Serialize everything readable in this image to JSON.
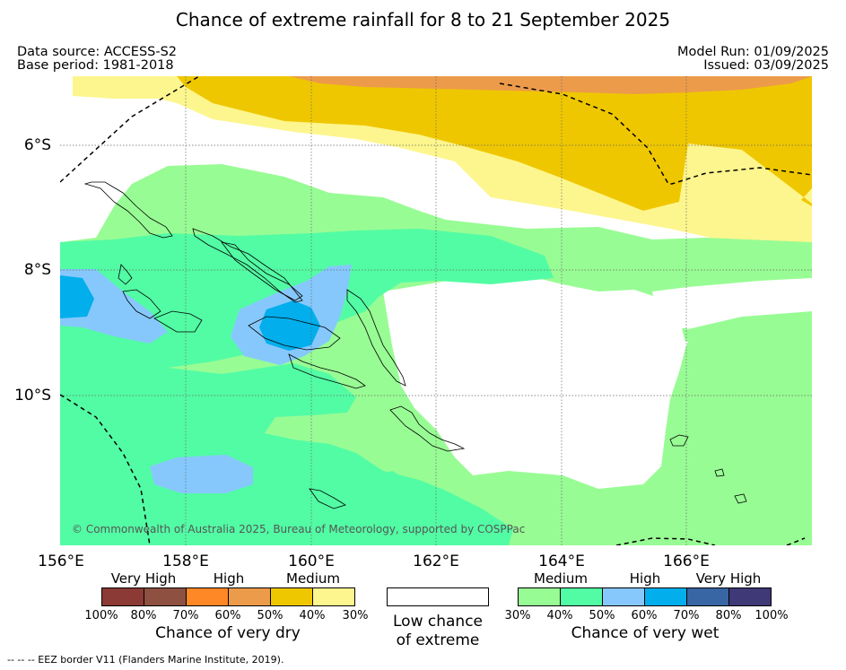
{
  "title": "Chance of extreme rainfall for 8 to 21 September 2025",
  "meta": {
    "data_source": "Data source: ACCESS-S2",
    "base_period": "Base period: 1981-2018",
    "model_run": "Model Run: 01/09/2025",
    "issued": "Issued: 03/09/2025"
  },
  "axes": {
    "lon_labels": [
      "156°E",
      "158°E",
      "160°E",
      "162°E",
      "164°E",
      "166°E"
    ],
    "lat_labels": [
      "6°S",
      "8°S",
      "10°S"
    ]
  },
  "copyright": "© Commonwealth of Australia 2025, Bureau of Meteorology, supported by COSPPac",
  "footer": "--  --  -- EEZ border V11 (Flanders Marine Institute, 2019).",
  "legend": {
    "dry": {
      "categories": [
        "Very High",
        "High",
        "Medium"
      ],
      "ticks": [
        "100%",
        "80%",
        "70%",
        "60%",
        "50%",
        "40%",
        "30%"
      ],
      "caption": "Chance of very dry",
      "colors": [
        "#8b3a35",
        "#8e5040",
        "#ff8826",
        "#ec9b4b",
        "#efc700",
        "#fdf68e"
      ]
    },
    "neutral": {
      "caption_line1": "Low chance",
      "caption_line2": "of extreme",
      "color": "#ffffff"
    },
    "wet": {
      "categories": [
        "Medium",
        "High",
        "Very High"
      ],
      "ticks": [
        "30%",
        "40%",
        "50%",
        "60%",
        "70%",
        "80%",
        "100%"
      ],
      "caption": "Chance of very wet",
      "colors": [
        "#98fc94",
        "#52fca4",
        "#86c8fc",
        "#02aeec",
        "#3865a3",
        "#3f3978"
      ]
    }
  }
}
